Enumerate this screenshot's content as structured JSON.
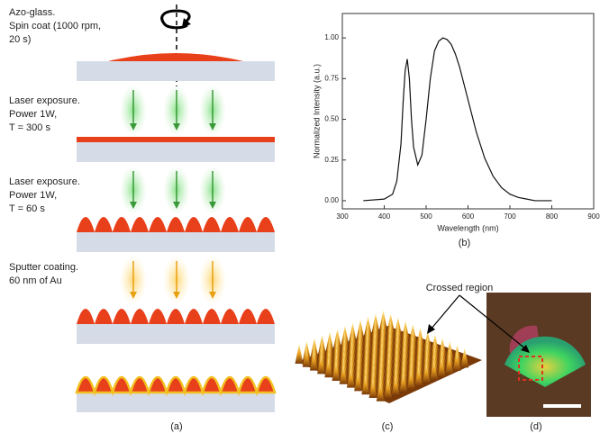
{
  "panels": {
    "a": {
      "steps": [
        [
          "Azo-glass.",
          "Spin coat (1000 rpm,",
          "20 s)"
        ],
        [
          "Laser exposure.",
          "Power 1W,",
          "T = 300 s"
        ],
        [
          "Laser exposure.",
          "Power 1W,",
          "T = 60 s"
        ],
        [
          "Sputter coating.",
          "60 nm of Au"
        ]
      ],
      "caption": "(a)"
    },
    "c": {
      "caption": "(c)"
    },
    "d": {
      "annotation": "Crossed region",
      "caption": "(d)"
    }
  },
  "chart_data": {
    "type": "line",
    "caption": "(b)",
    "xlabel": "Wavelength (nm)",
    "ylabel": "Normalized Intensity (a.u.)",
    "x": [
      350,
      400,
      420,
      430,
      440,
      445,
      450,
      455,
      460,
      465,
      470,
      480,
      490,
      500,
      510,
      520,
      530,
      540,
      550,
      560,
      570,
      580,
      590,
      600,
      620,
      640,
      660,
      680,
      700,
      720,
      740,
      760,
      800
    ],
    "values": [
      0,
      0.01,
      0.04,
      0.12,
      0.35,
      0.6,
      0.8,
      0.87,
      0.75,
      0.5,
      0.33,
      0.22,
      0.28,
      0.5,
      0.75,
      0.92,
      0.98,
      1.0,
      0.99,
      0.96,
      0.9,
      0.82,
      0.72,
      0.62,
      0.42,
      0.26,
      0.15,
      0.08,
      0.04,
      0.02,
      0.01,
      0,
      0
    ],
    "color": "#111111",
    "xlim": [
      300,
      900
    ],
    "ylim": [
      -0.05,
      1.15
    ],
    "xticks": [
      300,
      400,
      500,
      600,
      700,
      800,
      900
    ],
    "yticks": [
      {
        "value": 0,
        "label": "0.00"
      },
      {
        "value": 0.25,
        "label": "0.25"
      },
      {
        "value": 0.5,
        "label": "0.50"
      },
      {
        "value": 0.75,
        "label": "0.75"
      },
      {
        "value": 1,
        "label": "1.00"
      }
    ]
  }
}
